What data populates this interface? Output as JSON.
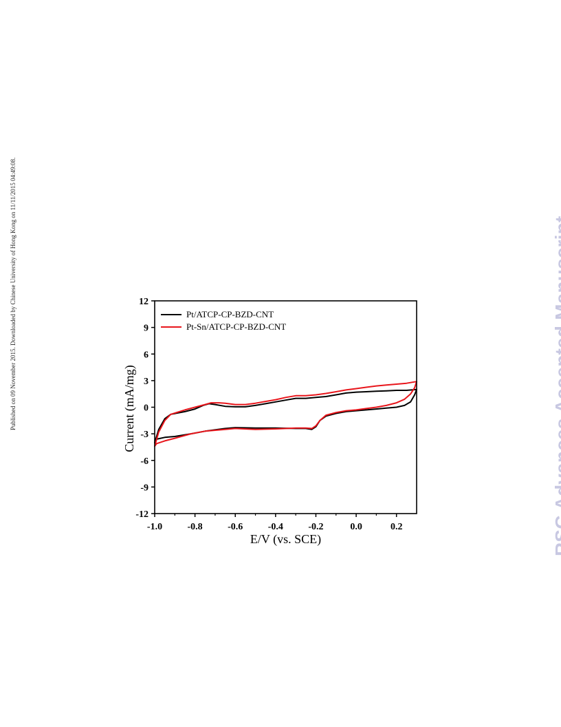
{
  "page": {
    "published_note": "Published on 09 November 2015. Downloaded by Chinese University of Hong Kong on 11/11/2015 04:49:08.",
    "watermark": "RSC Advances Accepted Manuscript"
  },
  "chart_data": {
    "type": "line",
    "title": "",
    "xlabel": "E/V (vs. SCE)",
    "ylabel": "Current (mA/mg)",
    "xlim": [
      -1.0,
      0.3
    ],
    "ylim": [
      -12,
      12
    ],
    "xticks": [
      -1.0,
      -0.8,
      -0.6,
      -0.4,
      -0.2,
      0.0,
      0.2
    ],
    "xtick_labels": [
      "-1.0",
      "-0.8",
      "-0.6",
      "-0.4",
      "-0.2",
      "0.0",
      "0.2"
    ],
    "yticks": [
      -12,
      -9,
      -6,
      -3,
      0,
      3,
      6,
      9,
      12
    ],
    "ytick_labels": [
      "-12",
      "-9",
      "-6",
      "-3",
      "0",
      "3",
      "6",
      "9",
      "12"
    ],
    "grid": false,
    "legend_position": "top-left",
    "series": [
      {
        "name": "Pt/ATCP-CP-BZD-CNT",
        "color": "#000000",
        "points": [
          [
            -1.0,
            -4.0
          ],
          [
            -0.98,
            -2.5
          ],
          [
            -0.95,
            -1.3
          ],
          [
            -0.92,
            -0.8
          ],
          [
            -0.85,
            -0.5
          ],
          [
            -0.8,
            -0.2
          ],
          [
            -0.76,
            0.2
          ],
          [
            -0.73,
            0.4
          ],
          [
            -0.7,
            0.3
          ],
          [
            -0.65,
            0.1
          ],
          [
            -0.6,
            0.05
          ],
          [
            -0.55,
            0.05
          ],
          [
            -0.5,
            0.2
          ],
          [
            -0.45,
            0.4
          ],
          [
            -0.4,
            0.6
          ],
          [
            -0.35,
            0.8
          ],
          [
            -0.3,
            1.0
          ],
          [
            -0.25,
            1.0
          ],
          [
            -0.2,
            1.1
          ],
          [
            -0.15,
            1.2
          ],
          [
            -0.1,
            1.4
          ],
          [
            -0.05,
            1.6
          ],
          [
            0.0,
            1.7
          ],
          [
            0.05,
            1.75
          ],
          [
            0.1,
            1.8
          ],
          [
            0.15,
            1.85
          ],
          [
            0.2,
            1.9
          ],
          [
            0.25,
            1.9
          ],
          [
            0.3,
            2.0
          ],
          [
            0.29,
            1.4
          ],
          [
            0.27,
            0.6
          ],
          [
            0.24,
            0.2
          ],
          [
            0.2,
            0.0
          ],
          [
            0.15,
            -0.1
          ],
          [
            0.1,
            -0.2
          ],
          [
            0.05,
            -0.3
          ],
          [
            0.0,
            -0.4
          ],
          [
            -0.05,
            -0.5
          ],
          [
            -0.1,
            -0.7
          ],
          [
            -0.15,
            -1.0
          ],
          [
            -0.18,
            -1.5
          ],
          [
            -0.2,
            -2.2
          ],
          [
            -0.22,
            -2.5
          ],
          [
            -0.25,
            -2.4
          ],
          [
            -0.3,
            -2.4
          ],
          [
            -0.4,
            -2.35
          ],
          [
            -0.5,
            -2.35
          ],
          [
            -0.6,
            -2.3
          ],
          [
            -0.65,
            -2.4
          ],
          [
            -0.75,
            -2.7
          ],
          [
            -0.82,
            -3.0
          ],
          [
            -0.9,
            -3.3
          ],
          [
            -0.95,
            -3.4
          ],
          [
            -0.99,
            -3.6
          ],
          [
            -1.0,
            -4.0
          ]
        ]
      },
      {
        "name": "Pt-Sn/ATCP-CP-BZD-CNT",
        "color": "#e8151b",
        "points": [
          [
            -1.0,
            -4.4
          ],
          [
            -0.98,
            -2.8
          ],
          [
            -0.95,
            -1.5
          ],
          [
            -0.92,
            -0.8
          ],
          [
            -0.85,
            -0.3
          ],
          [
            -0.8,
            0.0
          ],
          [
            -0.75,
            0.3
          ],
          [
            -0.72,
            0.5
          ],
          [
            -0.68,
            0.5
          ],
          [
            -0.65,
            0.45
          ],
          [
            -0.6,
            0.3
          ],
          [
            -0.55,
            0.3
          ],
          [
            -0.5,
            0.45
          ],
          [
            -0.45,
            0.65
          ],
          [
            -0.4,
            0.85
          ],
          [
            -0.35,
            1.1
          ],
          [
            -0.3,
            1.3
          ],
          [
            -0.25,
            1.3
          ],
          [
            -0.2,
            1.4
          ],
          [
            -0.15,
            1.55
          ],
          [
            -0.1,
            1.75
          ],
          [
            -0.05,
            1.95
          ],
          [
            0.0,
            2.1
          ],
          [
            0.05,
            2.25
          ],
          [
            0.1,
            2.4
          ],
          [
            0.15,
            2.5
          ],
          [
            0.2,
            2.6
          ],
          [
            0.25,
            2.7
          ],
          [
            0.3,
            2.9
          ],
          [
            0.29,
            2.2
          ],
          [
            0.27,
            1.5
          ],
          [
            0.24,
            0.9
          ],
          [
            0.2,
            0.5
          ],
          [
            0.15,
            0.2
          ],
          [
            0.1,
            0.0
          ],
          [
            0.05,
            -0.15
          ],
          [
            0.0,
            -0.3
          ],
          [
            -0.05,
            -0.4
          ],
          [
            -0.1,
            -0.6
          ],
          [
            -0.15,
            -0.9
          ],
          [
            -0.18,
            -1.5
          ],
          [
            -0.2,
            -2.1
          ],
          [
            -0.22,
            -2.4
          ],
          [
            -0.25,
            -2.35
          ],
          [
            -0.3,
            -2.35
          ],
          [
            -0.4,
            -2.45
          ],
          [
            -0.5,
            -2.5
          ],
          [
            -0.6,
            -2.4
          ],
          [
            -0.65,
            -2.5
          ],
          [
            -0.75,
            -2.7
          ],
          [
            -0.82,
            -3.0
          ],
          [
            -0.9,
            -3.5
          ],
          [
            -0.95,
            -3.8
          ],
          [
            -0.99,
            -4.1
          ],
          [
            -1.0,
            -4.4
          ]
        ]
      }
    ]
  }
}
